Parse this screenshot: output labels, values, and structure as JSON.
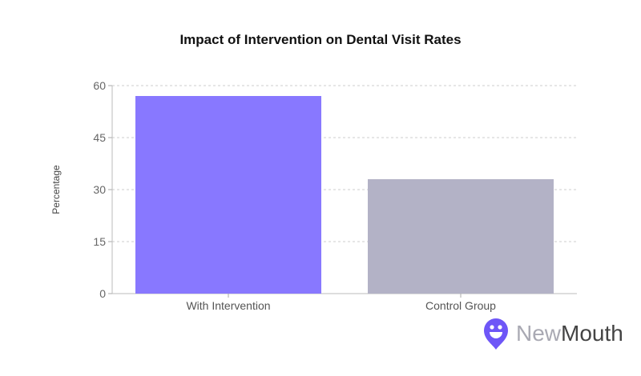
{
  "chart_data": {
    "type": "bar",
    "title": "Impact of Intervention on Dental Visit Rates",
    "xlabel": "",
    "ylabel": "Percentage",
    "categories": [
      "With Intervention",
      "Control Group"
    ],
    "values": [
      57,
      33
    ],
    "colors": [
      "#8878FF",
      "#B3B2C6"
    ],
    "ylim": [
      0,
      60
    ],
    "yticks": [
      0,
      15,
      30,
      45,
      60
    ],
    "grid": true,
    "legend": "none"
  },
  "logo": {
    "text_part1": "New",
    "text_part2": "Mouth",
    "color": "#6E56F7"
  }
}
